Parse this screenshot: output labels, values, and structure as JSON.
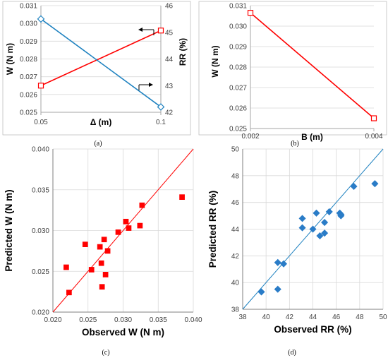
{
  "colors": {
    "red": "#ff0000",
    "blue": "#1f82c0",
    "diamond_blue": "#2a7cc7",
    "gridline": "#d9d9d9",
    "frame": "#bfbfbf"
  },
  "chart_data": [
    {
      "panel_label": "(a)",
      "type": "line",
      "xlabel": "Δ (m)",
      "x_ticks": [
        "0.05",
        "0.1"
      ],
      "xlim": [
        0.05,
        0.1
      ],
      "ylabel": "W (N m)",
      "ylim": [
        0.025,
        0.031
      ],
      "y_ticks": [
        "0.025",
        "0.026",
        "0.027",
        "0.028",
        "0.029",
        "0.030",
        "0.031"
      ],
      "y2label": "RR (%)",
      "y2lim": [
        42,
        46
      ],
      "y2_ticks": [
        "42",
        "43",
        "44",
        "45",
        "46"
      ],
      "grid": "horizontal",
      "series": [
        {
          "axis": "left",
          "color": "#ff0000",
          "marker": "square",
          "x": [
            0.05,
            0.1
          ],
          "y": [
            0.0265,
            0.0296
          ]
        },
        {
          "axis": "right",
          "color": "#1f82c0",
          "marker": "diamond",
          "x": [
            0.05,
            0.1
          ],
          "y": [
            45.5,
            42.2
          ]
        }
      ],
      "annotations": [
        "arrow-left near red line end (W axis)",
        "arrow-right near blue line (RR axis)"
      ]
    },
    {
      "panel_label": "(b)",
      "type": "line",
      "xlabel": "B (m)",
      "x_ticks": [
        "0.002",
        "0.004"
      ],
      "xlim": [
        0.002,
        0.004
      ],
      "ylabel": "W (N m)",
      "ylim": [
        0.025,
        0.031
      ],
      "y_ticks": [
        "0.025",
        "0.026",
        "0.027",
        "0.028",
        "0.029",
        "0.030",
        "0.031"
      ],
      "grid": "horizontal",
      "series": [
        {
          "color": "#ff0000",
          "marker": "square",
          "x": [
            0.002,
            0.004
          ],
          "y": [
            0.03065,
            0.0255
          ]
        }
      ]
    },
    {
      "panel_label": "(c)",
      "type": "scatter",
      "xlabel": "Observed W (N m)",
      "ylabel": "Predicted W (N m)",
      "xlim": [
        0.02,
        0.04
      ],
      "ylim": [
        0.02,
        0.04
      ],
      "x_ticks": [
        "0.020",
        "0.025",
        "0.030",
        "0.035",
        "0.040"
      ],
      "y_ticks": [
        "0.020",
        "0.025",
        "0.030",
        "0.035",
        "0.040"
      ],
      "grid": "both",
      "reference_line": "y = x",
      "series": [
        {
          "color": "#ff0000",
          "marker": "square",
          "x": [
            0.0219,
            0.0223,
            0.0246,
            0.0255,
            0.0267,
            0.0269,
            0.027,
            0.0273,
            0.0275,
            0.0278,
            0.0293,
            0.0304,
            0.0308,
            0.0324,
            0.0327,
            0.0384
          ],
          "y": [
            0.0255,
            0.0224,
            0.0283,
            0.0252,
            0.028,
            0.026,
            0.0231,
            0.0289,
            0.0246,
            0.0275,
            0.0298,
            0.0311,
            0.0303,
            0.0306,
            0.0331,
            0.0341
          ]
        }
      ]
    },
    {
      "panel_label": "(d)",
      "type": "scatter",
      "xlabel": "Observed RR (%)",
      "ylabel": "Predicted RR (%)",
      "xlim": [
        38,
        50
      ],
      "ylim": [
        38,
        50
      ],
      "x_ticks": [
        "38",
        "40",
        "42",
        "44",
        "46",
        "48",
        "50"
      ],
      "y_ticks": [
        "38",
        "40",
        "42",
        "44",
        "46",
        "48",
        "50"
      ],
      "grid": "both",
      "reference_line": "y = x",
      "series": [
        {
          "color": "#2a7cc7",
          "marker": "diamond",
          "x": [
            39.6,
            41.0,
            41.0,
            41.5,
            43.1,
            43.1,
            44.0,
            44.3,
            44.6,
            45.0,
            45.0,
            45.4,
            46.3,
            46.4,
            46.4,
            47.5,
            49.3
          ],
          "y": [
            39.3,
            41.5,
            39.5,
            41.4,
            44.8,
            44.1,
            44.0,
            45.2,
            43.5,
            44.5,
            43.7,
            45.3,
            45.2,
            45.0,
            45.1,
            47.2,
            47.4
          ]
        }
      ]
    }
  ]
}
